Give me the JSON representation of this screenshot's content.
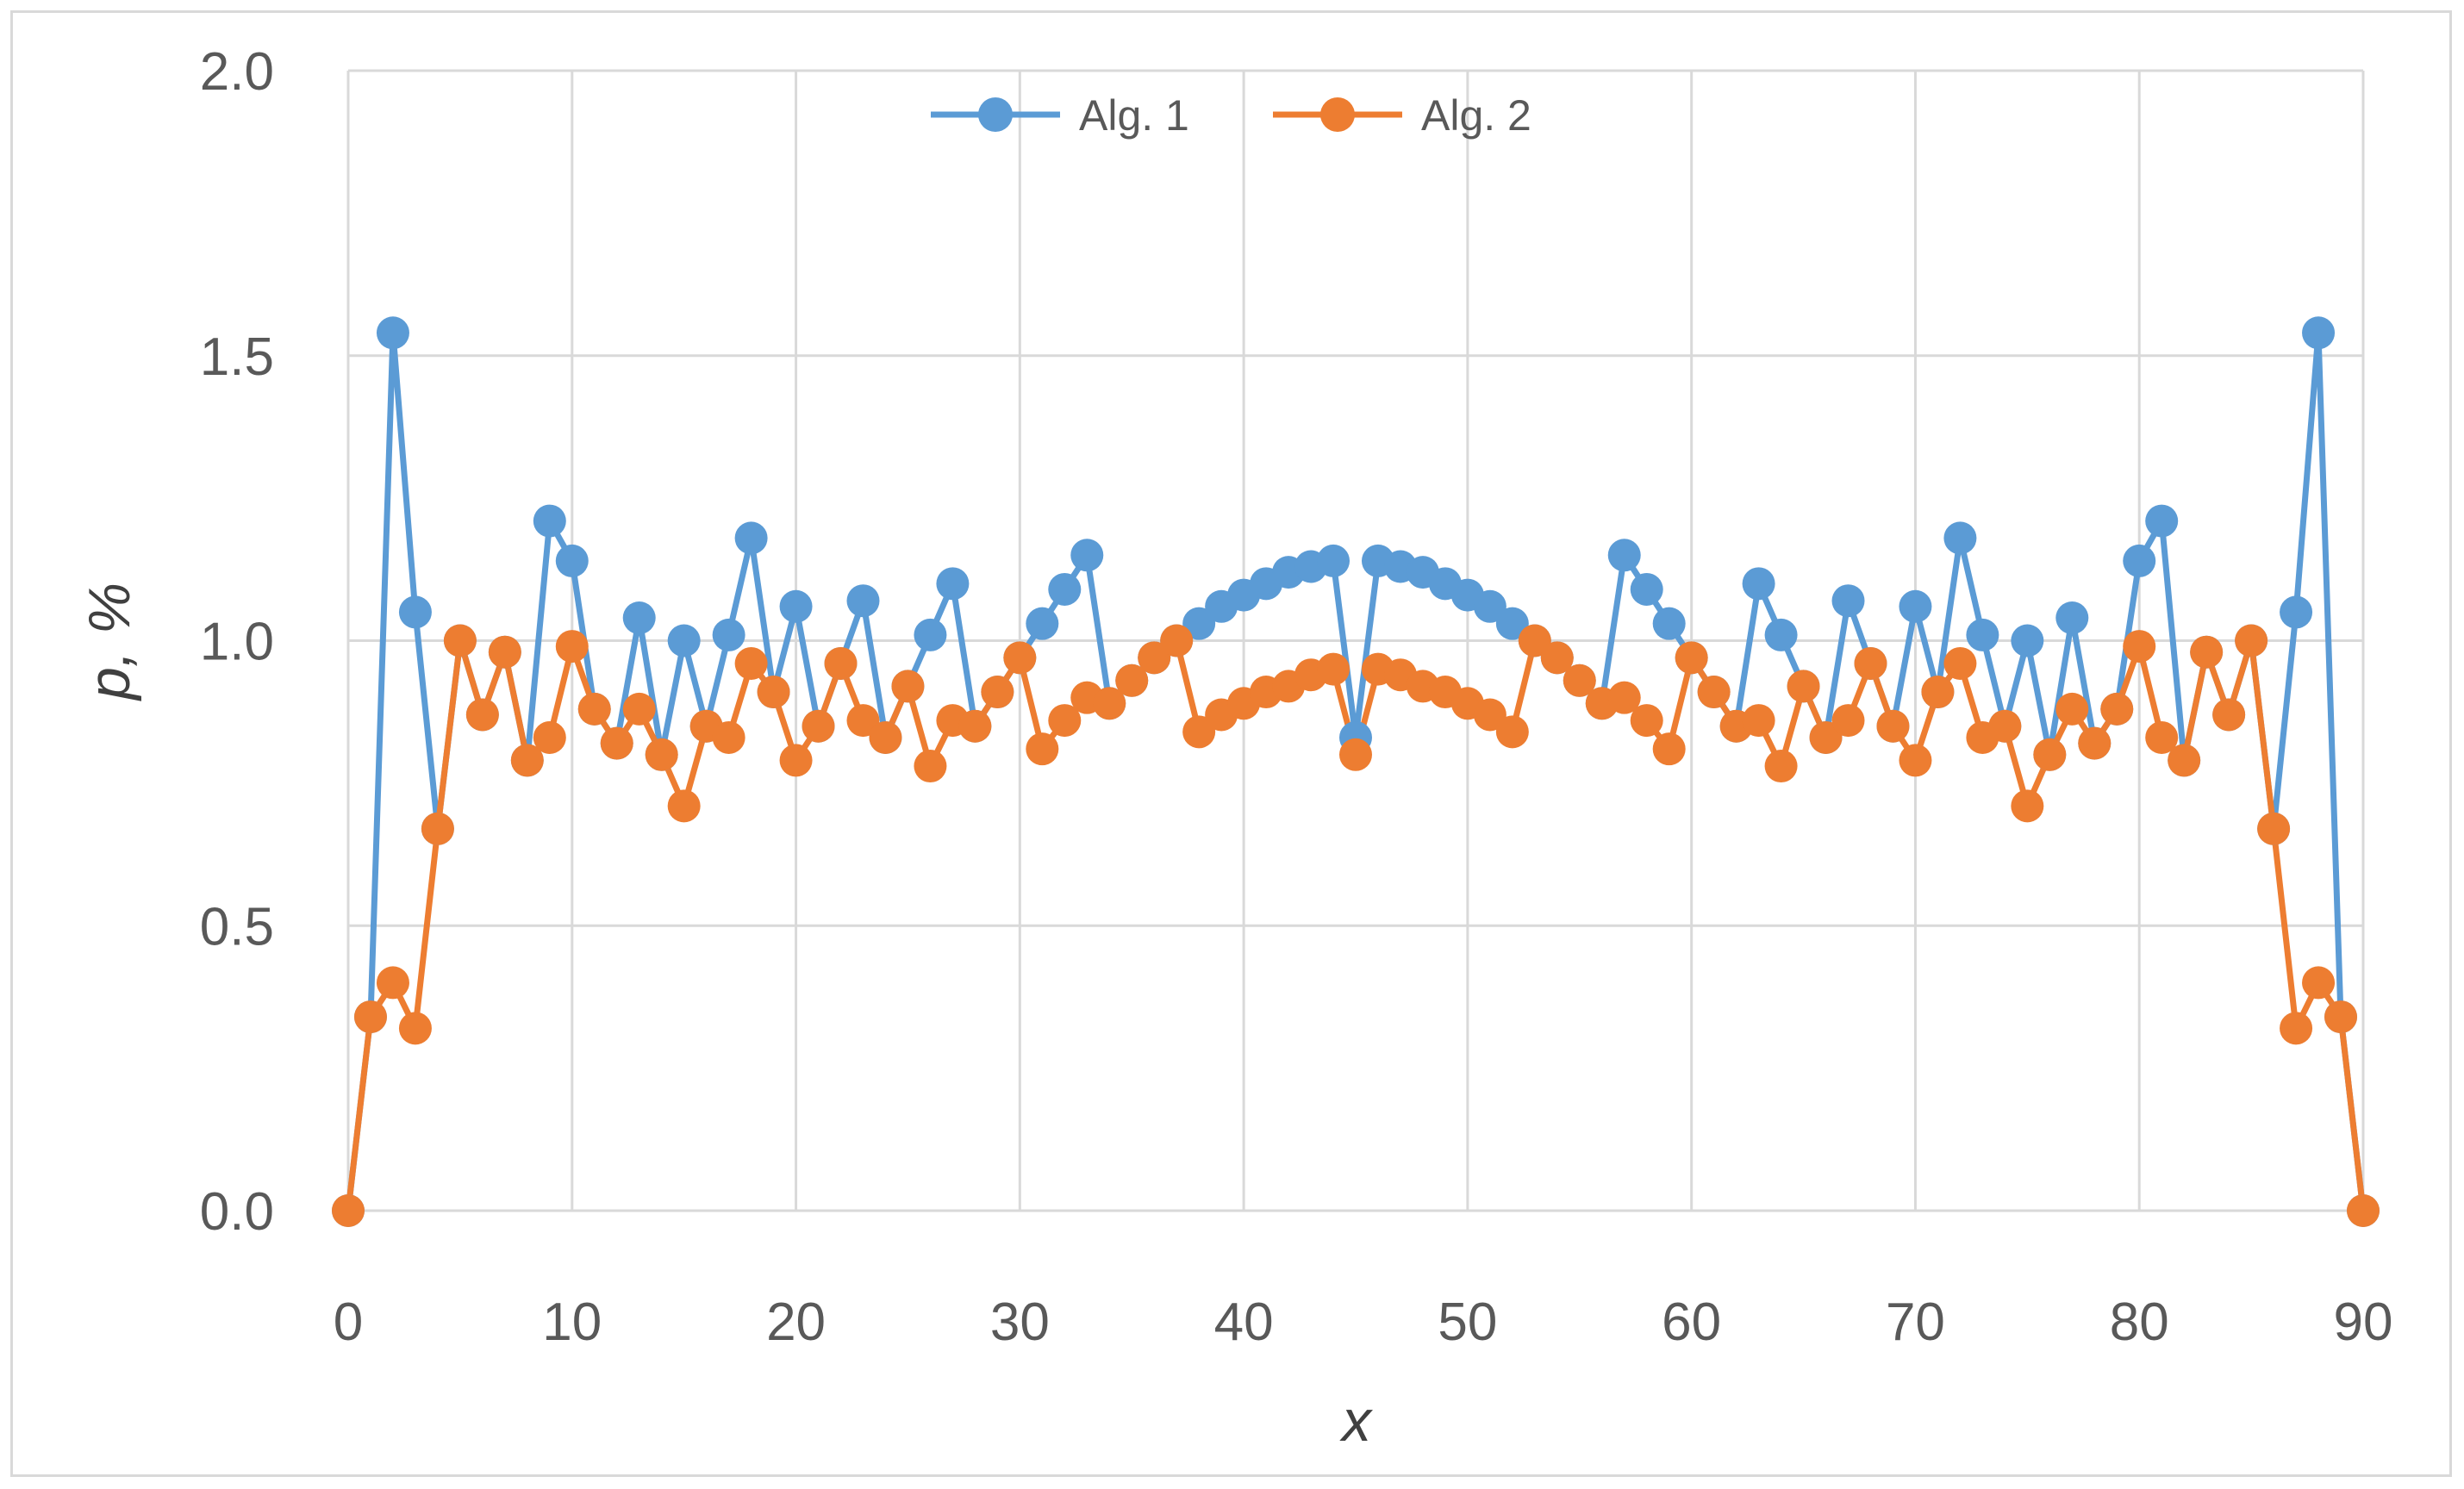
{
  "chart_data": {
    "type": "line",
    "xlabel": "x",
    "ylabel": "p, %",
    "xlim": [
      0,
      90
    ],
    "ylim": [
      0.0,
      2.0
    ],
    "x_ticks": [
      "0",
      "10",
      "20",
      "30",
      "40",
      "50",
      "60",
      "70",
      "80",
      "90"
    ],
    "y_ticks": [
      "0.0",
      "0.5",
      "1.0",
      "1.5",
      "2.0"
    ],
    "grid": true,
    "legend_position": "top-center",
    "x": [
      0,
      1,
      2,
      3,
      4,
      5,
      6,
      7,
      8,
      9,
      10,
      11,
      12,
      13,
      14,
      15,
      16,
      17,
      18,
      19,
      20,
      21,
      22,
      23,
      24,
      25,
      26,
      27,
      28,
      29,
      30,
      31,
      32,
      33,
      34,
      35,
      36,
      37,
      38,
      39,
      40,
      41,
      42,
      43,
      44,
      45,
      46,
      47,
      48,
      49,
      50,
      51,
      52,
      53,
      54,
      55,
      56,
      57,
      58,
      59,
      60,
      61,
      62,
      63,
      64,
      65,
      66,
      67,
      68,
      69,
      70,
      71,
      72,
      73,
      74,
      75,
      76,
      77,
      78,
      79,
      80,
      81,
      82,
      83,
      84,
      85,
      86,
      87,
      88,
      89,
      90
    ],
    "series": [
      {
        "name": "Alg. 1",
        "color": "#5b9bd5",
        "values": [
          0.0,
          0.34,
          1.54,
          1.05,
          0.67,
          1.0,
          0.87,
          0.98,
          0.79,
          1.21,
          1.14,
          0.88,
          0.82,
          1.04,
          0.8,
          1.0,
          0.85,
          1.01,
          1.18,
          0.91,
          1.06,
          0.85,
          0.96,
          1.07,
          0.83,
          0.92,
          1.01,
          1.1,
          0.85,
          0.91,
          0.97,
          1.03,
          1.09,
          1.15,
          0.89,
          0.93,
          0.97,
          1.0,
          1.03,
          1.06,
          1.08,
          1.1,
          1.12,
          1.13,
          1.14,
          0.83,
          1.14,
          1.13,
          1.12,
          1.1,
          1.08,
          1.06,
          1.03,
          1.0,
          0.97,
          0.93,
          0.89,
          1.15,
          1.09,
          1.03,
          0.97,
          0.91,
          0.85,
          1.1,
          1.01,
          0.92,
          0.83,
          1.07,
          0.96,
          0.85,
          1.06,
          0.91,
          1.18,
          1.01,
          0.85,
          1.0,
          0.8,
          1.04,
          0.82,
          0.88,
          1.14,
          1.21,
          0.79,
          0.98,
          0.87,
          1.0,
          0.67,
          1.05,
          1.54,
          0.34,
          0.0
        ]
      },
      {
        "name": "Alg. 2",
        "color": "#ed7d31",
        "values": [
          0.0,
          0.34,
          0.4,
          0.32,
          0.67,
          1.0,
          0.87,
          0.98,
          0.79,
          0.83,
          0.99,
          0.88,
          0.82,
          0.88,
          0.8,
          0.71,
          0.85,
          0.83,
          0.96,
          0.91,
          0.79,
          0.85,
          0.96,
          0.86,
          0.83,
          0.92,
          0.78,
          0.86,
          0.85,
          0.91,
          0.97,
          0.81,
          0.86,
          0.9,
          0.89,
          0.93,
          0.97,
          1.0,
          0.84,
          0.87,
          0.89,
          0.91,
          0.92,
          0.94,
          0.95,
          0.8,
          0.95,
          0.94,
          0.92,
          0.91,
          0.89,
          0.87,
          0.84,
          1.0,
          0.97,
          0.93,
          0.89,
          0.9,
          0.86,
          0.81,
          0.97,
          0.91,
          0.85,
          0.86,
          0.78,
          0.92,
          0.83,
          0.86,
          0.96,
          0.85,
          0.79,
          0.91,
          0.96,
          0.83,
          0.85,
          0.71,
          0.8,
          0.88,
          0.82,
          0.88,
          0.99,
          0.83,
          0.79,
          0.98,
          0.87,
          1.0,
          0.67,
          0.32,
          0.4,
          0.34,
          0.0
        ]
      }
    ]
  }
}
